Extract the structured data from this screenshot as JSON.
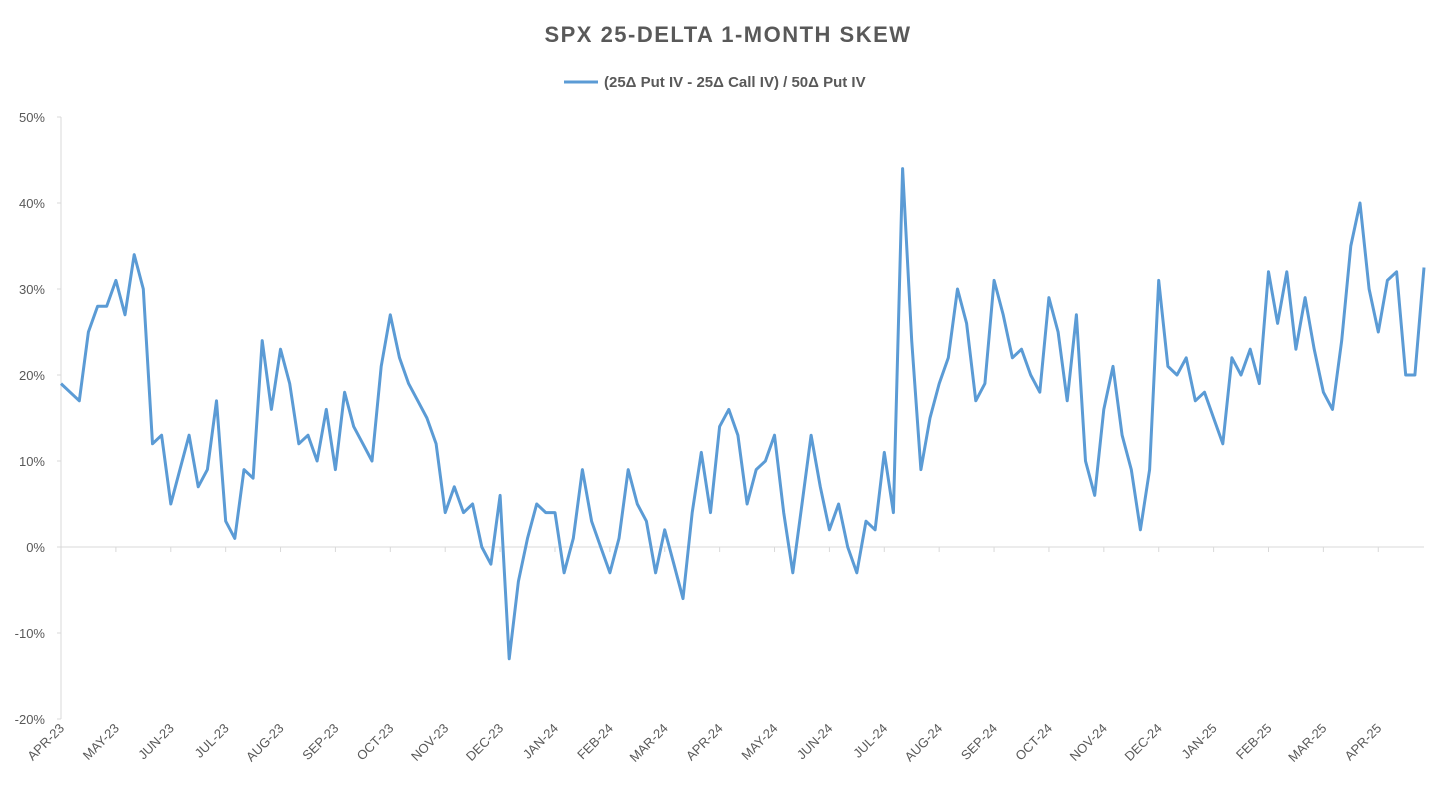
{
  "chart_data": {
    "type": "line",
    "title": "SPX 25-DELTA  1-MONTH  SKEW",
    "categories": [
      "APR-23",
      null,
      null,
      null,
      null,
      null,
      "MAY-23",
      null,
      null,
      null,
      null,
      null,
      "JUN-23",
      null,
      null,
      null,
      null,
      null,
      "JUL-23",
      null,
      null,
      null,
      null,
      null,
      "AUG-23",
      null,
      null,
      null,
      null,
      null,
      "SEP-23",
      null,
      null,
      null,
      null,
      null,
      "OCT-23",
      null,
      null,
      null,
      null,
      null,
      "NOV-23",
      null,
      null,
      null,
      null,
      null,
      "DEC-23",
      null,
      null,
      null,
      null,
      null,
      "JAN-24",
      null,
      null,
      null,
      null,
      null,
      "FEB-24",
      null,
      null,
      null,
      null,
      null,
      "MAR-24",
      null,
      null,
      null,
      null,
      null,
      "APR-24",
      null,
      null,
      null,
      null,
      null,
      "MAY-24",
      null,
      null,
      null,
      null,
      null,
      "JUN-24",
      null,
      null,
      null,
      null,
      null,
      "JUL-24",
      null,
      null,
      null,
      null,
      null,
      "AUG-24",
      null,
      null,
      null,
      null,
      null,
      "SEP-24",
      null,
      null,
      null,
      null,
      null,
      "OCT-24",
      null,
      null,
      null,
      null,
      null,
      "NOV-24",
      null,
      null,
      null,
      null,
      null,
      "DEC-24",
      null,
      null,
      null,
      null,
      null,
      "JAN-25",
      null,
      null,
      null,
      null,
      null,
      "FEB-25",
      null,
      null,
      null,
      null,
      null,
      "MAR-25",
      null,
      null,
      null,
      null,
      null,
      "APR-25",
      null,
      null,
      null,
      null,
      null
    ],
    "series": [
      {
        "name": "(25Δ Put IV - 25Δ Call IV) / 50Δ Put IV",
        "color": "#5b9bd5",
        "values": [
          19,
          18,
          17,
          25,
          28,
          28,
          31,
          27,
          34,
          30,
          12,
          13,
          5,
          9,
          13,
          7,
          9,
          17,
          3,
          1,
          9,
          8,
          24,
          16,
          23,
          19,
          12,
          13,
          10,
          16,
          9,
          18,
          14,
          12,
          10,
          21,
          27,
          22,
          19,
          17,
          15,
          12,
          4,
          7,
          4,
          5,
          0,
          -2,
          6,
          -13,
          -4,
          1,
          5,
          4,
          4,
          -3,
          1,
          9,
          3,
          0,
          -3,
          1,
          9,
          5,
          3,
          -3,
          2,
          -2,
          -6,
          4,
          11,
          4,
          14,
          16,
          13,
          5,
          9,
          10,
          13,
          4,
          -3,
          5,
          13,
          7,
          2,
          5,
          0,
          -3,
          3,
          2,
          11,
          4,
          44,
          24,
          9,
          15,
          19,
          22,
          30,
          26,
          17,
          19,
          31,
          27,
          22,
          23,
          20,
          18,
          29,
          25,
          17,
          27,
          10,
          6,
          16,
          21,
          13,
          9,
          2,
          9,
          31,
          21,
          20,
          22,
          17,
          18,
          15,
          12,
          22,
          20,
          23,
          19,
          32,
          26,
          32,
          23,
          29,
          23,
          18,
          16,
          24,
          35,
          40,
          30,
          25,
          31,
          32,
          20,
          20,
          32.5
        ]
      }
    ],
    "ylim": [
      -20,
      50
    ],
    "yticks": [
      {
        "value": -20,
        "label": "-20%"
      },
      {
        "value": -10,
        "label": "-10%"
      },
      {
        "value": 0,
        "label": "0%"
      },
      {
        "value": 10,
        "label": "10%"
      },
      {
        "value": 20,
        "label": "20%"
      },
      {
        "value": 30,
        "label": "30%"
      },
      {
        "value": 40,
        "label": "40%"
      },
      {
        "value": 50,
        "label": "50%"
      }
    ],
    "legend": "top"
  }
}
